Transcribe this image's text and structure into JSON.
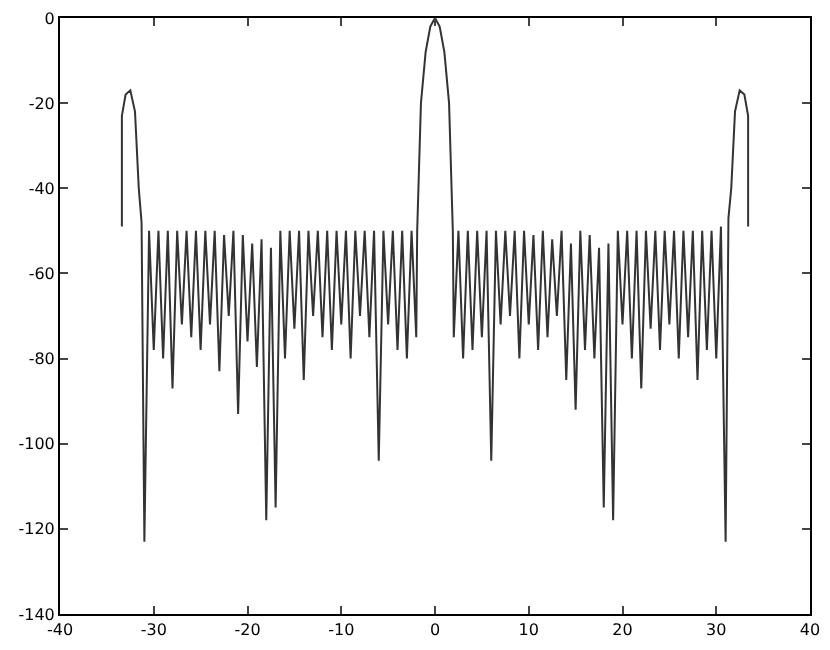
{
  "chart_data": {
    "type": "line",
    "xlim": [
      -40,
      40
    ],
    "ylim": [
      -140,
      0
    ],
    "xticks": [
      -40,
      -30,
      -20,
      -10,
      0,
      10,
      20,
      30,
      40
    ],
    "yticks": [
      -140,
      -120,
      -100,
      -80,
      -60,
      -40,
      -20,
      0
    ],
    "legend": false,
    "marker": "none",
    "line_style": "solid",
    "x": [
      -33.4,
      -33.4,
      -33,
      -32.5,
      -32,
      -31.6,
      -31.3,
      -31,
      -30.5,
      -30,
      -29.5,
      -29,
      -28.5,
      -28,
      -27.5,
      -27,
      -26.5,
      -26,
      -25.5,
      -25,
      -24.5,
      -24,
      -23.5,
      -23,
      -22.5,
      -22,
      -21.5,
      -21,
      -20.5,
      -20,
      -19.5,
      -19,
      -18.5,
      -18,
      -17.5,
      -17,
      -16.5,
      -16,
      -15.5,
      -15,
      -14.5,
      -14,
      -13.5,
      -13,
      -12.5,
      -12,
      -11.5,
      -11,
      -10.5,
      -10,
      -9.5,
      -9,
      -8.5,
      -8,
      -7.5,
      -7,
      -6.5,
      -6,
      -5.5,
      -5,
      -4.5,
      -4,
      -3.5,
      -3,
      -2.5,
      -2,
      -1.9,
      -1.5,
      -1,
      -0.5,
      0,
      0.5,
      1,
      1.5,
      1.9,
      2,
      2.5,
      3,
      3.5,
      4,
      4.5,
      5,
      5.5,
      6,
      6.5,
      7,
      7.5,
      8,
      8.5,
      9,
      9.5,
      10,
      10.5,
      11,
      11.5,
      12,
      12.5,
      13,
      13.5,
      14,
      14.5,
      15,
      15.5,
      16,
      16.5,
      17,
      17.5,
      18,
      18.5,
      19,
      19.5,
      20,
      20.5,
      21,
      21.5,
      22,
      22.5,
      23,
      23.5,
      24,
      24.5,
      25,
      25.5,
      26,
      26.5,
      27,
      27.5,
      28,
      28.5,
      29,
      29.5,
      30,
      30.5,
      31,
      31.3,
      31.6,
      32,
      32.5,
      33,
      33.4,
      33.4
    ],
    "series": [
      {
        "color": "#333333",
        "values": [
          -49,
          -23,
          -18,
          -17,
          -22,
          -40,
          -48,
          -123,
          -50,
          -78,
          -50,
          -80,
          -50,
          -87,
          -50,
          -72,
          -50,
          -75,
          -50,
          -78,
          -50,
          -72,
          -50,
          -83,
          -51,
          -70,
          -50,
          -93,
          -51,
          -76,
          -53,
          -82,
          -52,
          -118,
          -54,
          -115,
          -50,
          -80,
          -50,
          -73,
          -50,
          -85,
          -50,
          -70,
          -50,
          -75,
          -50,
          -78,
          -50,
          -72,
          -50,
          -80,
          -50,
          -70,
          -50,
          -75,
          -50,
          -104,
          -50,
          -72,
          -50,
          -78,
          -50,
          -80,
          -50,
          -75,
          -50,
          -20,
          -8,
          -2,
          0,
          -2,
          -8,
          -20,
          -50,
          -75,
          -50,
          -80,
          -50,
          -78,
          -50,
          -75,
          -50,
          -104,
          -50,
          -72,
          -50,
          -70,
          -50,
          -80,
          -50,
          -72,
          -51,
          -78,
          -50,
          -75,
          -52,
          -70,
          -50,
          -85,
          -53,
          -92,
          -50,
          -78,
          -51,
          -80,
          -54,
          -115,
          -53,
          -118,
          -50,
          -72,
          -50,
          -80,
          -50,
          -87,
          -50,
          -73,
          -50,
          -78,
          -50,
          -72,
          -50,
          -80,
          -50,
          -75,
          -50,
          -85,
          -50,
          -78,
          -50,
          -80,
          -49,
          -123,
          -47,
          -40,
          -22,
          -17,
          -18,
          -23,
          -49
        ]
      }
    ]
  }
}
